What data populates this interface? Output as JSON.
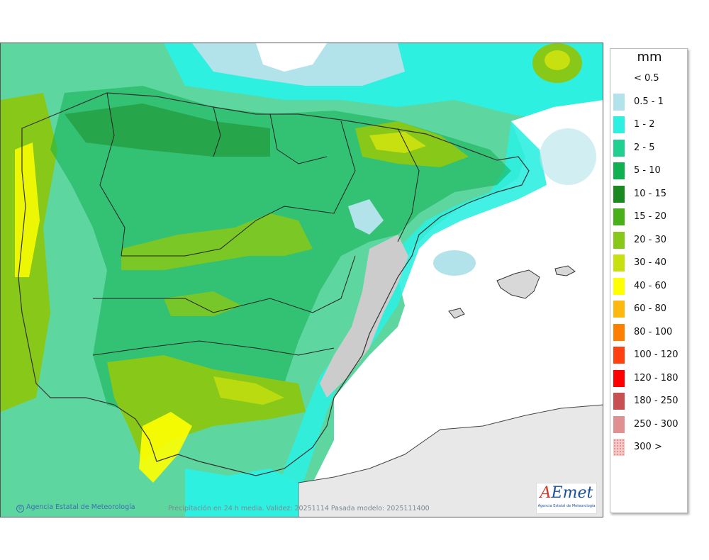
{
  "legend": {
    "unit": "mm",
    "items": [
      {
        "label": "< 0.5",
        "color": "#ffffff"
      },
      {
        "label": "0.5 - 1",
        "color": "#b3e3ea"
      },
      {
        "label": "1 - 2",
        "color": "#2ef0e0"
      },
      {
        "label": "2 - 5",
        "color": "#20d090"
      },
      {
        "label": "5 - 10",
        "color": "#10b050"
      },
      {
        "label": "10 - 15",
        "color": "#1a8a20"
      },
      {
        "label": "15 - 20",
        "color": "#48b018"
      },
      {
        "label": "20 - 30",
        "color": "#88c818"
      },
      {
        "label": "30 - 40",
        "color": "#c8e010"
      },
      {
        "label": "40 - 60",
        "color": "#ffff00"
      },
      {
        "label": "60 - 80",
        "color": "#ffb810"
      },
      {
        "label": "80 - 100",
        "color": "#ff8000"
      },
      {
        "label": "100 - 120",
        "color": "#ff4010"
      },
      {
        "label": "120 - 180",
        "color": "#ff0000"
      },
      {
        "label": "180 - 250",
        "color": "#c85050"
      },
      {
        "label": "250 - 300",
        "color": "#e09090"
      },
      {
        "label": "300 >",
        "color": "#f4c8c8"
      }
    ]
  },
  "footer": {
    "credit": "Agencia Estatal de Meteorología",
    "caption": "Precipitación en 24 h media. Validez: 20251114 Pasada modelo: 2025111400"
  },
  "logo": {
    "mark_a": "A",
    "mark_e": "E",
    "mark_rest": "met",
    "subtitle": "Agencia Estatal de Meteorología"
  }
}
